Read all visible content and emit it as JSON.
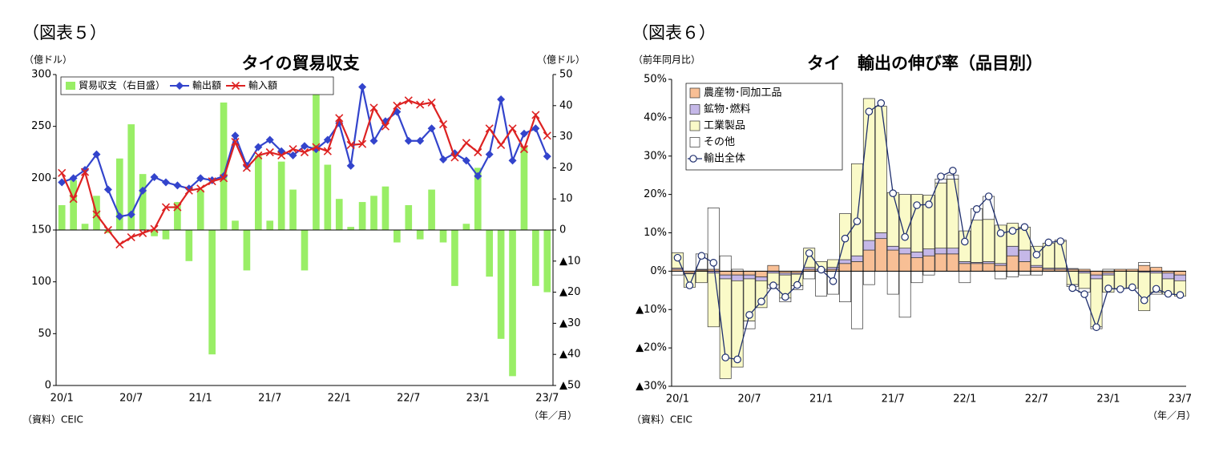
{
  "chart_data": [
    {
      "type": "combo",
      "figure_label": "（図表５）",
      "title": "タイの貿易収支",
      "y_label": "（億ドル）",
      "y2_label": "（億ドル）",
      "source": "（資料）CEIC",
      "x_label": "（年／月）",
      "categories": [
        "20/1",
        null,
        null,
        null,
        null,
        null,
        "20/7",
        null,
        null,
        null,
        null,
        null,
        "21/1",
        null,
        null,
        null,
        null,
        null,
        "21/7",
        null,
        null,
        null,
        null,
        null,
        "22/1",
        null,
        null,
        null,
        null,
        null,
        "22/7",
        null,
        null,
        null,
        null,
        null,
        "23/1",
        null,
        null,
        null,
        null,
        null,
        "23/7"
      ],
      "ylim": [
        0,
        300
      ],
      "yticks": [
        0,
        50,
        100,
        150,
        200,
        250,
        300
      ],
      "y2lim": [
        -50,
        50
      ],
      "y2ticks": [
        {
          "value": -50,
          "label": "▲50"
        },
        {
          "value": -40,
          "label": "▲40"
        },
        {
          "value": -30,
          "label": "▲30"
        },
        {
          "value": -20,
          "label": "▲20"
        },
        {
          "value": -10,
          "label": "▲10"
        },
        0,
        10,
        20,
        30,
        40,
        50
      ],
      "grid": false,
      "legend": "top",
      "series": [
        {
          "name": "貿易収支（右目盛）",
          "type": "bar",
          "axis": "y2",
          "color": "#99ee66",
          "values": [
            8,
            16,
            2,
            11,
            -1,
            23,
            34,
            18,
            -2,
            -3,
            9,
            -10,
            13,
            -40,
            41,
            3,
            -13,
            24,
            3,
            22,
            13,
            -13,
            45,
            21,
            10,
            1,
            9,
            11,
            14,
            -4,
            8,
            -3,
            13,
            -4,
            -18,
            2,
            20,
            -15,
            -35,
            -47,
            27,
            -18,
            -20
          ]
        },
        {
          "name": "輸出額",
          "type": "line",
          "marker": "diamond",
          "color": "#3344cc",
          "values": [
            196,
            200,
            208,
            223,
            189,
            163,
            165,
            188,
            201,
            196,
            193,
            190,
            200,
            198,
            202,
            241,
            212,
            230,
            237,
            226,
            222,
            231,
            228,
            237,
            253,
            212,
            288,
            236,
            255,
            264,
            236,
            236,
            248,
            218,
            224,
            217,
            202,
            223,
            276,
            217,
            243,
            248,
            221
          ]
        },
        {
          "name": "輸入額",
          "type": "line",
          "marker": "x",
          "color": "#dd2222",
          "values": [
            205,
            180,
            206,
            165,
            150,
            136,
            143,
            147,
            151,
            172,
            172,
            188,
            190,
            197,
            200,
            235,
            210,
            222,
            225,
            222,
            228,
            225,
            230,
            226,
            258,
            232,
            233,
            268,
            250,
            270,
            275,
            271,
            273,
            252,
            220,
            234,
            225,
            248,
            232,
            248,
            228,
            261,
            241
          ]
        }
      ]
    },
    {
      "type": "stacked_bar",
      "figure_label": "（図表６）",
      "title": "タイ　輸出の伸び率（品目別）",
      "y_label": "（前年同月比）",
      "source": "（資料）CEIC",
      "x_label": "（年／月）",
      "categories": [
        "20/1",
        null,
        null,
        null,
        null,
        null,
        "20/7",
        null,
        null,
        null,
        null,
        null,
        "21/1",
        null,
        null,
        null,
        null,
        null,
        "21/7",
        null,
        null,
        null,
        null,
        null,
        "22/1",
        null,
        null,
        null,
        null,
        null,
        "22/7",
        null,
        null,
        null,
        null,
        null,
        "23/1",
        null,
        null,
        null,
        null,
        null,
        "23/7"
      ],
      "ylim": [
        -30,
        50
      ],
      "yticks": [
        {
          "value": -30,
          "label": "▲30%"
        },
        {
          "value": -20,
          "label": "▲20%"
        },
        {
          "value": -10,
          "label": "▲10%"
        },
        {
          "value": 0,
          "label": "0%"
        },
        {
          "value": 10,
          "label": "10%"
        },
        {
          "value": 20,
          "label": "20%"
        },
        {
          "value": 30,
          "label": "30%"
        },
        {
          "value": 40,
          "label": "40%"
        },
        {
          "value": 50,
          "label": "50%"
        }
      ],
      "grid": false,
      "legend": "upper left",
      "series": [
        {
          "name": "農産物･同加工品",
          "type": "bar",
          "color": "#f8bf95",
          "values": [
            0.5,
            -0.5,
            0.3,
            0.5,
            -1,
            -1,
            -1,
            -1.5,
            1.5,
            -0.5,
            -0.5,
            0.5,
            0,
            0.5,
            2,
            2.5,
            5.5,
            8.5,
            5.5,
            4.5,
            3.5,
            4,
            4.5,
            4.5,
            2,
            2,
            2,
            1.5,
            4,
            2.5,
            1,
            0.5,
            0.5,
            0.5,
            0.5,
            -1,
            -0.5,
            0.5,
            0.5,
            1.5,
            1,
            -0.5,
            -1
          ]
        },
        {
          "name": "鉱物･燃料",
          "type": "bar",
          "color": "#c5b8e8",
          "values": [
            0.3,
            -0.2,
            0.2,
            -0.5,
            -1,
            -1.5,
            -1,
            -1,
            -0.5,
            -0.5,
            -0.3,
            0.5,
            0.5,
            0.5,
            1,
            1.5,
            2.5,
            1.5,
            1,
            1.5,
            1.5,
            1.8,
            1.5,
            1.5,
            0.5,
            0.3,
            0.5,
            0.5,
            2.5,
            3,
            0.5,
            0.3,
            0.3,
            0.2,
            -0.5,
            -1,
            -0.5,
            0,
            0,
            -0.3,
            -0.5,
            -1.5,
            -1.5
          ]
        },
        {
          "name": "工業製品",
          "type": "bar",
          "color": "#fafac8",
          "values": [
            4,
            -3.5,
            -3,
            -14,
            -26,
            -22.5,
            -11,
            -7,
            -3,
            -6,
            -3,
            5,
            2,
            2,
            12,
            24,
            37,
            33,
            14,
            14,
            15,
            14,
            17,
            18,
            8,
            11,
            11,
            10,
            6,
            6,
            5,
            6.5,
            7,
            -3.5,
            -4,
            -12.5,
            -4.5,
            -4.5,
            -4.5,
            -10,
            -5,
            -4,
            -4
          ]
        },
        {
          "name": "その他",
          "type": "bar",
          "color": "#ffffff",
          "values": [
            -1,
            0,
            4,
            16,
            4,
            0.5,
            -2,
            0,
            -1,
            -1,
            -1,
            -2,
            -6.5,
            -6,
            -8,
            -15,
            -3.5,
            0,
            -6,
            -12,
            -3,
            -1,
            1,
            1,
            -3,
            3,
            6,
            -2,
            -1.5,
            -1,
            -1,
            0,
            0.3,
            -0.5,
            -1,
            -0.5,
            0.5,
            0,
            0,
            0.8,
            -0.5,
            0,
            0
          ]
        },
        {
          "name": "輸出全体",
          "type": "line",
          "marker": "circle",
          "color": "#1f2f6e",
          "values": [
            3.5,
            -3.7,
            4,
            2.2,
            -22.5,
            -23,
            -11.4,
            -7.9,
            -3.7,
            -6.7,
            -3.6,
            4.7,
            0.4,
            -2.6,
            8.5,
            13,
            41.6,
            43.8,
            20.3,
            8.9,
            17.2,
            17.4,
            24.7,
            26.2,
            7.7,
            16.2,
            19.5,
            9.9,
            10.5,
            11.5,
            4.3,
            7.5,
            7.8,
            -4.4,
            -6,
            -14.6,
            -4.5,
            -4.7,
            -4.2,
            -7.6,
            -4.6,
            -5.9,
            -6.2
          ]
        }
      ]
    }
  ]
}
